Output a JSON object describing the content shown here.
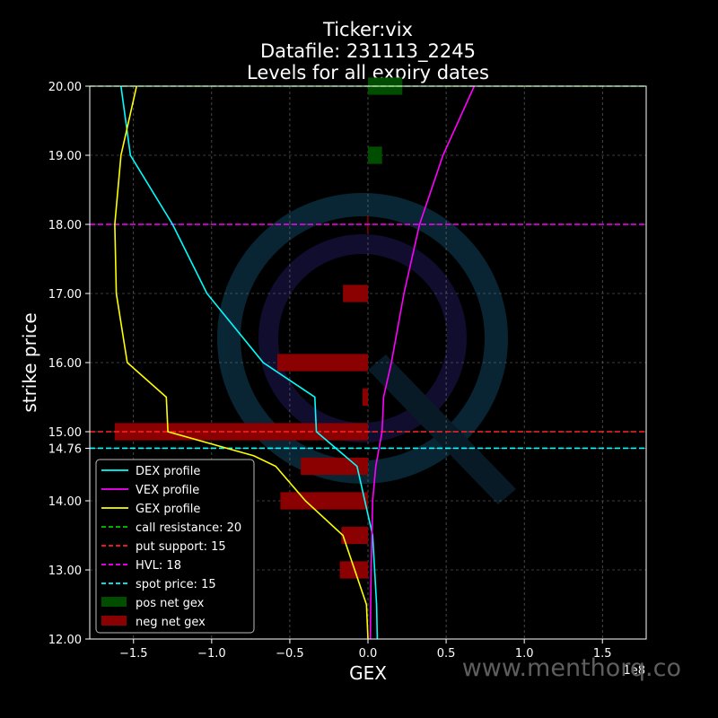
{
  "chart_data": {
    "type": "bar",
    "orientation": "horizontal",
    "title": [
      "Ticker:vix",
      "Datafile: 231113_2245",
      "Levels for all expiry dates"
    ],
    "xlabel": "GEX",
    "ylabel": "strike price",
    "x_multiplier_label": "1e8",
    "xlim": [
      -1.78,
      1.78
    ],
    "ylim": [
      12,
      20
    ],
    "x_ticks": [
      -1.5,
      -1.0,
      -0.5,
      0.0,
      0.5,
      1.0,
      1.5
    ],
    "x_tick_labels": [
      "−1.5",
      "−1.0",
      "−0.5",
      "0.0",
      "0.5",
      "1.0",
      "1.5"
    ],
    "y_ticks": [
      12,
      13,
      14,
      14.76,
      15,
      16,
      17,
      18,
      19,
      20
    ],
    "y_tick_labels": [
      "12.00",
      "13.00",
      "14.00",
      "14.76",
      "15.00",
      "16.00",
      "17.00",
      "18.00",
      "19.00",
      "20.00"
    ],
    "grid": true,
    "legend_position": "lower-left",
    "bar_height": 0.25,
    "bars": [
      {
        "strike": 20.0,
        "value": 0.22,
        "sign": "pos"
      },
      {
        "strike": 19.0,
        "value": 0.09,
        "sign": "pos"
      },
      {
        "strike": 18.0,
        "value": -0.005,
        "sign": "neg"
      },
      {
        "strike": 17.0,
        "value": -0.16,
        "sign": "neg"
      },
      {
        "strike": 16.0,
        "value": -0.58,
        "sign": "neg"
      },
      {
        "strike": 15.5,
        "value": -0.035,
        "sign": "neg"
      },
      {
        "strike": 15.0,
        "value": -1.62,
        "sign": "neg"
      },
      {
        "strike": 14.5,
        "value": -0.43,
        "sign": "neg"
      },
      {
        "strike": 14.0,
        "value": -0.56,
        "sign": "neg"
      },
      {
        "strike": 13.5,
        "value": -0.17,
        "sign": "neg"
      },
      {
        "strike": 13.0,
        "value": -0.18,
        "sign": "neg"
      }
    ],
    "series": [
      {
        "name": "DEX profile",
        "color": "#00ffff",
        "points": [
          [
            -1.58,
            20.0
          ],
          [
            -1.52,
            19.0
          ],
          [
            -1.25,
            18.0
          ],
          [
            -1.03,
            17.0
          ],
          [
            -0.67,
            16.0
          ],
          [
            -0.34,
            15.5
          ],
          [
            -0.33,
            15.0
          ],
          [
            -0.07,
            14.5
          ],
          [
            0.03,
            13.5
          ],
          [
            0.055,
            12.5
          ],
          [
            0.06,
            12.0
          ]
        ]
      },
      {
        "name": "VEX profile",
        "color": "#ff00ff",
        "points": [
          [
            0.68,
            20.0
          ],
          [
            0.48,
            19.0
          ],
          [
            0.33,
            18.0
          ],
          [
            0.23,
            17.0
          ],
          [
            0.15,
            16.0
          ],
          [
            0.1,
            15.5
          ],
          [
            0.09,
            15.0
          ],
          [
            0.05,
            14.5
          ],
          [
            0.03,
            14.0
          ],
          [
            0.02,
            13.0
          ],
          [
            0.015,
            12.0
          ]
        ]
      },
      {
        "name": "GEX profile",
        "color": "#ffff00",
        "points": [
          [
            -1.48,
            20.0
          ],
          [
            -1.58,
            19.0
          ],
          [
            -1.62,
            18.0
          ],
          [
            -1.61,
            17.0
          ],
          [
            -1.54,
            16.0
          ],
          [
            -1.29,
            15.5
          ],
          [
            -1.28,
            15.0
          ],
          [
            -0.73,
            14.65
          ],
          [
            -0.59,
            14.5
          ],
          [
            -0.4,
            14.0
          ],
          [
            -0.16,
            13.5
          ],
          [
            -0.01,
            12.5
          ],
          [
            0.0,
            12.0
          ]
        ]
      }
    ],
    "levels": [
      {
        "name": "call resistance: 20",
        "value": 20,
        "color": "#00cc00"
      },
      {
        "name": "put support: 15",
        "value": 15,
        "color": "#ff2222"
      },
      {
        "name": "HVL: 18",
        "value": 18,
        "color": "#ff00ff"
      },
      {
        "name": "spot price: 15",
        "value": 14.76,
        "color": "#00ffff"
      }
    ],
    "legend": [
      {
        "label": "DEX profile",
        "kind": "line",
        "color": "#00ffff"
      },
      {
        "label": "VEX profile",
        "kind": "line",
        "color": "#ff00ff"
      },
      {
        "label": "GEX profile",
        "kind": "line",
        "color": "#ffff00"
      },
      {
        "label": "call resistance: 20",
        "kind": "dash",
        "color": "#00cc00"
      },
      {
        "label": "put support: 15",
        "kind": "dash",
        "color": "#ff2222"
      },
      {
        "label": "HVL: 18",
        "kind": "dash",
        "color": "#ff00ff"
      },
      {
        "label": "spot price: 15",
        "kind": "dash",
        "color": "#00ffff"
      },
      {
        "label": "pos net gex",
        "kind": "patch",
        "color": "#004d00"
      },
      {
        "label": "neg net gex",
        "kind": "patch",
        "color": "#8b0000"
      }
    ],
    "colors": {
      "pos_bar": "#004d00",
      "neg_bar": "#8b0000",
      "grid": "#777777",
      "background": "#000000"
    },
    "watermark_text": "www.menthorq.co"
  }
}
